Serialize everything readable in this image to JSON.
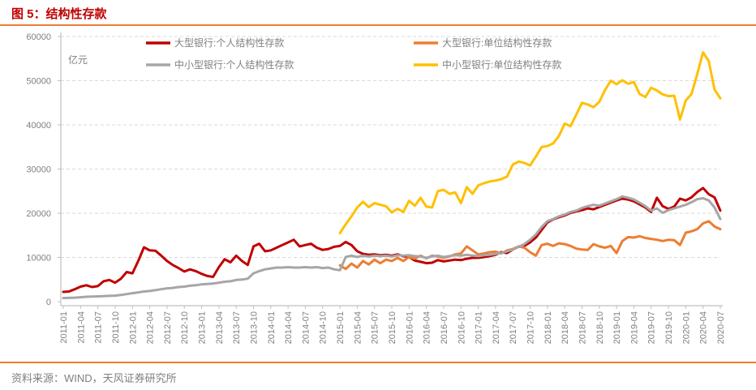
{
  "header": {
    "title": "图 5：结构性存款"
  },
  "footer": {
    "source": "资料来源：WIND，天风证券研究所"
  },
  "colors": {
    "accent_rule": "#ed7d31",
    "title": "#c00000",
    "grid": "#d9d9d9",
    "axis": "#bfbfbf",
    "tick_text": "#808080"
  },
  "chart_data": {
    "type": "line",
    "title": "图 5：结构性存款",
    "unit_label": "亿元",
    "x_start_month": "2011-01",
    "x_end_month": "2020-07",
    "x_tick_labels": [
      "2011-01",
      "2011-04",
      "2011-07",
      "2011-10",
      "2012-01",
      "2012-04",
      "2012-07",
      "2012-10",
      "2013-01",
      "2013-04",
      "2013-07",
      "2013-10",
      "2014-01",
      "2014-04",
      "2014-07",
      "2014-10",
      "2015-01",
      "2015-04",
      "2015-07",
      "2015-10",
      "2016-01",
      "2016-04",
      "2016-07",
      "2016-10",
      "2017-01",
      "2017-04",
      "2017-07",
      "2017-10",
      "2018-01",
      "2018-04",
      "2018-07",
      "2018-10",
      "2019-01",
      "2019-04",
      "2019-07",
      "2019-10",
      "2020-01",
      "2020-04",
      "2020-07"
    ],
    "y_ticks": [
      0,
      10000,
      20000,
      30000,
      40000,
      50000,
      60000
    ],
    "ylim": [
      0,
      60000
    ],
    "grid": "horizontal dashed",
    "legend_position": "top-inside, two columns",
    "series": [
      {
        "name": "大型银行:个人结构性存款",
        "color": "#c00000",
        "legend_col": 0,
        "legend_row": 0,
        "values": [
          2200,
          2300,
          2800,
          3400,
          3700,
          3300,
          3500,
          4600,
          4900,
          4300,
          5200,
          6700,
          6400,
          9200,
          12300,
          11600,
          11500,
          10400,
          9200,
          8300,
          7600,
          6800,
          7300,
          6900,
          6300,
          5800,
          5600,
          7800,
          9600,
          8900,
          10400,
          9200,
          8300,
          12500,
          13100,
          11400,
          11600,
          12200,
          12800,
          13400,
          14000,
          12500,
          12800,
          13100,
          12200,
          11700,
          11900,
          12400,
          12600,
          13500,
          12800,
          11400,
          10800,
          10600,
          10700,
          10500,
          10600,
          10400,
          10700,
          10300,
          10100,
          9300,
          9000,
          8700,
          8800,
          9400,
          9100,
          9300,
          9500,
          9400,
          9700,
          9900,
          9900,
          10100,
          10300,
          10600,
          11200,
          11000,
          11800,
          12400,
          12600,
          13400,
          14500,
          16200,
          17900,
          18600,
          19100,
          19500,
          20100,
          20400,
          20700,
          21100,
          20900,
          21400,
          21900,
          22400,
          22900,
          23300,
          23100,
          22700,
          22000,
          21300,
          20300,
          23500,
          21600,
          21000,
          21500,
          23300,
          22900,
          23600,
          24800,
          25700,
          24300,
          23600,
          20600
        ]
      },
      {
        "name": "大型银行:单位结构性存款",
        "color": "#ed7d31",
        "legend_col": 1,
        "legend_row": 0,
        "values": [
          null,
          null,
          null,
          null,
          null,
          null,
          null,
          null,
          null,
          null,
          null,
          null,
          null,
          null,
          null,
          null,
          null,
          null,
          null,
          null,
          null,
          null,
          null,
          null,
          null,
          null,
          null,
          null,
          null,
          null,
          null,
          null,
          null,
          null,
          null,
          null,
          null,
          null,
          null,
          null,
          null,
          null,
          null,
          null,
          null,
          null,
          null,
          null,
          8200,
          7400,
          8600,
          7700,
          9200,
          8400,
          9500,
          8700,
          9500,
          9200,
          9900,
          9200,
          10100,
          9700,
          10400,
          9800,
          10400,
          10200,
          9900,
          10200,
          10700,
          10900,
          12500,
          11600,
          10700,
          10900,
          11200,
          11300,
          10900,
          11600,
          11900,
          12500,
          12200,
          11200,
          10400,
          12800,
          13100,
          12600,
          13200,
          13000,
          12600,
          12000,
          11800,
          11700,
          13000,
          12500,
          12200,
          12600,
          11000,
          13700,
          14600,
          14500,
          14800,
          14400,
          14200,
          14000,
          13700,
          14000,
          13900,
          12800,
          15600,
          15900,
          16400,
          17700,
          18200,
          17000,
          16400
        ]
      },
      {
        "name": "中小型银行:个人结构性存款",
        "color": "#a6a6a6",
        "legend_col": 0,
        "legend_row": 1,
        "values": [
          800,
          850,
          900,
          1000,
          1100,
          1150,
          1200,
          1250,
          1300,
          1350,
          1500,
          1700,
          1900,
          2100,
          2300,
          2400,
          2600,
          2800,
          3000,
          3100,
          3300,
          3400,
          3600,
          3700,
          3900,
          4000,
          4100,
          4300,
          4500,
          4600,
          4900,
          5000,
          5200,
          6400,
          6900,
          7300,
          7500,
          7700,
          7700,
          7800,
          7700,
          7700,
          7800,
          7700,
          7800,
          7600,
          7700,
          7300,
          7100,
          10100,
          10400,
          10100,
          10400,
          10200,
          10400,
          10300,
          10400,
          10200,
          10500,
          10400,
          10500,
          10300,
          10200,
          9900,
          10200,
          10400,
          10100,
          10300,
          10500,
          10400,
          10600,
          10400,
          10300,
          10500,
          10600,
          10800,
          11000,
          11400,
          11800,
          12400,
          13000,
          14000,
          15200,
          16900,
          18200,
          18700,
          19300,
          19700,
          20300,
          20600,
          21200,
          21600,
          21900,
          21700,
          22200,
          22700,
          23200,
          23800,
          23500,
          23100,
          22400,
          21600,
          20600,
          21100,
          20100,
          20700,
          21100,
          21500,
          21900,
          22500,
          23200,
          23400,
          22900,
          21300,
          18700
        ]
      },
      {
        "name": "中小型银行:单位结构性存款",
        "color": "#ffc000",
        "legend_col": 1,
        "legend_row": 1,
        "values": [
          null,
          null,
          null,
          null,
          null,
          null,
          null,
          null,
          null,
          null,
          null,
          null,
          null,
          null,
          null,
          null,
          null,
          null,
          null,
          null,
          null,
          null,
          null,
          null,
          null,
          null,
          null,
          null,
          null,
          null,
          null,
          null,
          null,
          null,
          null,
          null,
          null,
          null,
          null,
          null,
          null,
          null,
          null,
          null,
          null,
          null,
          null,
          null,
          15500,
          17500,
          19300,
          21300,
          22600,
          21400,
          22300,
          21900,
          21600,
          20200,
          21000,
          20300,
          22800,
          21700,
          23500,
          21500,
          21300,
          25000,
          25300,
          24400,
          24700,
          22300,
          25900,
          24400,
          26300,
          26800,
          27200,
          27400,
          27700,
          28300,
          31000,
          31700,
          31400,
          30800,
          32800,
          35000,
          35200,
          35800,
          37500,
          40300,
          39700,
          42300,
          45000,
          44600,
          44000,
          45200,
          47900,
          50000,
          49200,
          50100,
          49300,
          49700,
          47000,
          46300,
          48400,
          47800,
          46900,
          46500,
          46600,
          41200,
          45500,
          47000,
          51500,
          56400,
          54400,
          48000,
          46000
        ]
      }
    ]
  }
}
